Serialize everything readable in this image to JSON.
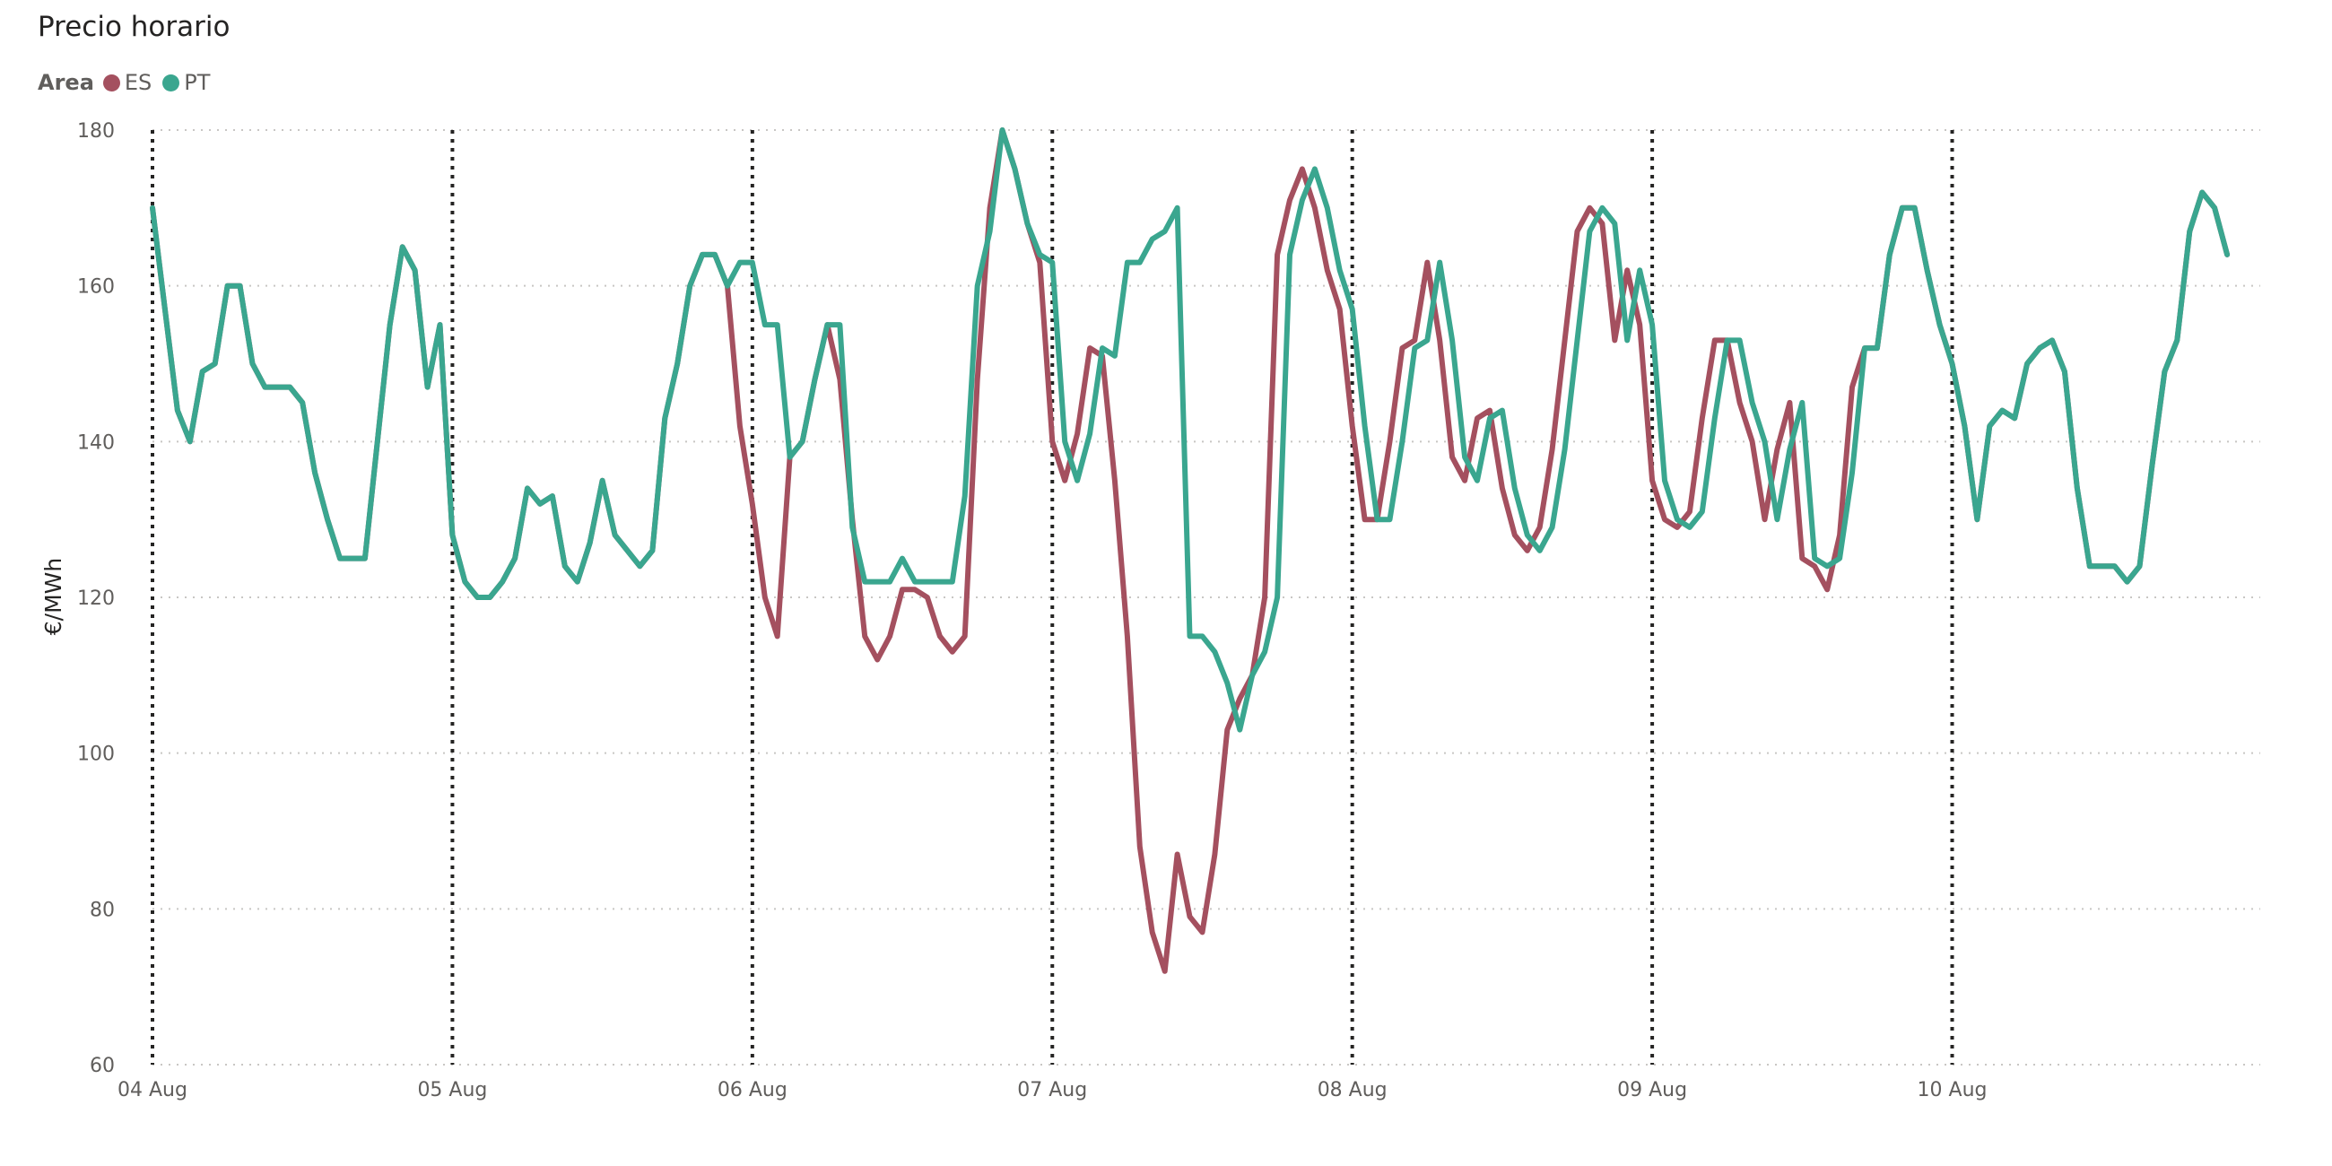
{
  "chart_data": {
    "type": "line",
    "title": "Precio horario",
    "legend_title": "Area",
    "legend_position": "top-left",
    "ylabel": "€/MWh",
    "xlabel": "",
    "ylim": [
      60,
      180
    ],
    "yticks": [
      60,
      80,
      100,
      120,
      140,
      160,
      180
    ],
    "xlim_hours": [
      0,
      167
    ],
    "x_tick_labels": [
      "04 Aug",
      "05 Aug",
      "06 Aug",
      "07 Aug",
      "08 Aug",
      "09 Aug",
      "10 Aug"
    ],
    "grid": "horizontal dotted",
    "day_separators": "vertical dotted",
    "series": [
      {
        "name": "ES",
        "color": "#a4505f",
        "values": [
          170,
          157,
          144,
          140,
          149,
          150,
          160,
          160,
          150,
          147,
          147,
          147,
          145,
          136,
          130,
          125,
          125,
          125,
          140,
          155,
          165,
          162,
          147,
          155,
          128,
          122,
          120,
          120,
          122,
          125,
          134,
          132,
          133,
          124,
          122,
          127,
          135,
          128,
          126,
          124,
          126,
          143,
          150,
          160,
          164,
          164,
          160,
          142,
          132,
          120,
          115,
          138,
          140,
          148,
          155,
          148,
          130,
          115,
          112,
          115,
          121,
          121,
          120,
          115,
          113,
          115,
          148,
          170,
          180,
          175,
          168,
          163,
          140,
          135,
          141,
          152,
          151,
          135,
          115,
          88,
          77,
          72,
          87,
          79,
          77,
          87,
          103,
          107,
          110,
          120,
          164,
          171,
          175,
          170,
          162,
          157,
          142,
          130,
          130,
          140,
          152,
          153,
          163,
          153,
          138,
          135,
          143,
          144,
          134,
          128,
          126,
          129,
          139,
          153,
          167,
          170,
          168,
          153,
          162,
          155,
          135,
          130,
          129,
          131,
          143,
          153,
          153,
          145,
          140,
          130,
          139,
          145,
          125,
          124,
          121,
          128,
          147,
          152,
          152,
          164,
          170,
          170,
          162,
          155,
          150,
          142,
          130,
          142,
          144,
          143,
          150,
          152,
          153,
          149,
          134,
          124,
          124,
          124,
          122,
          124,
          137,
          149,
          153,
          167,
          172,
          170,
          164
        ]
      },
      {
        "name": "PT",
        "color": "#3aa68f",
        "values": [
          170,
          157,
          144,
          140,
          149,
          150,
          160,
          160,
          150,
          147,
          147,
          147,
          145,
          136,
          130,
          125,
          125,
          125,
          140,
          155,
          165,
          162,
          147,
          155,
          128,
          122,
          120,
          120,
          122,
          125,
          134,
          132,
          133,
          124,
          122,
          127,
          135,
          128,
          126,
          124,
          126,
          143,
          150,
          160,
          164,
          164,
          160,
          163,
          163,
          155,
          155,
          138,
          140,
          148,
          155,
          155,
          129,
          122,
          122,
          122,
          125,
          122,
          122,
          122,
          122,
          133,
          160,
          167,
          180,
          175,
          168,
          164,
          163,
          140,
          135,
          141,
          152,
          151,
          163,
          163,
          166,
          167,
          170,
          115,
          115,
          113,
          109,
          103,
          110,
          113,
          120,
          164,
          171,
          175,
          170,
          162,
          157,
          142,
          130,
          130,
          140,
          152,
          153,
          163,
          153,
          138,
          135,
          143,
          144,
          134,
          128,
          126,
          129,
          139,
          153,
          167,
          170,
          168,
          153,
          162,
          155,
          135,
          130,
          129,
          131,
          143,
          153,
          153,
          145,
          140,
          130,
          139,
          145,
          125,
          124,
          125,
          136,
          152,
          152,
          164,
          170,
          170,
          162,
          155,
          150,
          142,
          130,
          142,
          144,
          143,
          150,
          152,
          153,
          149,
          134,
          124,
          124,
          124,
          122,
          124,
          137,
          149,
          153,
          167,
          172,
          170,
          164
        ]
      }
    ]
  }
}
